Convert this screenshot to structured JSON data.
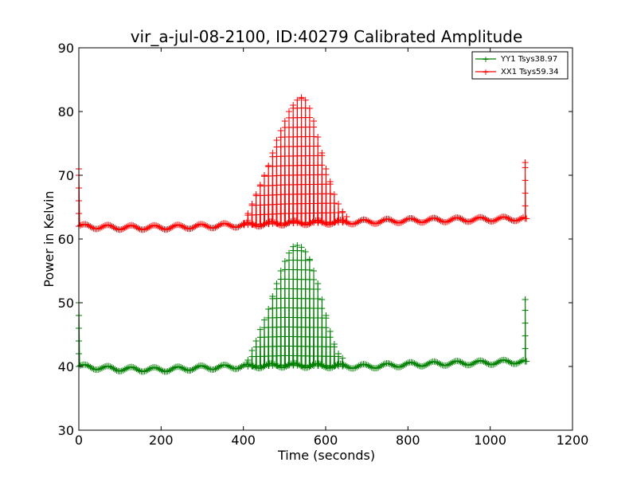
{
  "chart_data": {
    "type": "line",
    "title": "vir_a-jul-08-2100, ID:40279 Calibrated Amplitude",
    "xlabel": "Time (seconds)",
    "ylabel": "Power in Kelvin",
    "xlim": [
      0,
      1200
    ],
    "ylim": [
      30,
      90
    ],
    "xticks": [
      "0",
      "200",
      "400",
      "600",
      "800",
      "1000",
      "1200"
    ],
    "yticks": [
      "30",
      "40",
      "50",
      "60",
      "70",
      "80",
      "90"
    ],
    "grid": false,
    "legend_position": "top-right",
    "marker": "+",
    "series": [
      {
        "name": "YY1 Tsys38.97",
        "color": "#008000",
        "base": [
          [
            0,
            40.0
          ],
          [
            100,
            39.6
          ],
          [
            200,
            39.5
          ],
          [
            300,
            39.8
          ],
          [
            400,
            40.0
          ],
          [
            500,
            40.2
          ],
          [
            600,
            40.1
          ],
          [
            700,
            40.0
          ],
          [
            800,
            40.3
          ],
          [
            900,
            40.5
          ],
          [
            1000,
            40.6
          ],
          [
            1080,
            40.8
          ]
        ],
        "peaks": [
          [
            410,
            41.0
          ],
          [
            420,
            42.5
          ],
          [
            430,
            44.0
          ],
          [
            440,
            45.8
          ],
          [
            450,
            47.3
          ],
          [
            460,
            49.0
          ],
          [
            470,
            51.0
          ],
          [
            480,
            53.0
          ],
          [
            490,
            55.0
          ],
          [
            500,
            56.5
          ],
          [
            510,
            57.8
          ],
          [
            520,
            58.8
          ],
          [
            530,
            59.0
          ],
          [
            540,
            58.7
          ],
          [
            550,
            58.0
          ],
          [
            560,
            56.8
          ],
          [
            570,
            55.0
          ],
          [
            580,
            53.0
          ],
          [
            590,
            50.5
          ],
          [
            600,
            48.0
          ],
          [
            610,
            45.5
          ],
          [
            620,
            43.5
          ],
          [
            630,
            42.0
          ],
          [
            640,
            41.3
          ]
        ],
        "edge_spikes": [
          [
            0,
            50.0
          ],
          [
            1085,
            50.5
          ]
        ]
      },
      {
        "name": "XX1 Tsys59.34",
        "color": "#ff0000",
        "base": [
          [
            0,
            62.0
          ],
          [
            100,
            61.8
          ],
          [
            200,
            61.8
          ],
          [
            300,
            62.0
          ],
          [
            400,
            62.2
          ],
          [
            500,
            62.5
          ],
          [
            600,
            62.6
          ],
          [
            700,
            62.7
          ],
          [
            800,
            62.9
          ],
          [
            900,
            63.0
          ],
          [
            1000,
            63.1
          ],
          [
            1080,
            63.2
          ]
        ],
        "peaks": [
          [
            400,
            63.0
          ],
          [
            410,
            64.0
          ],
          [
            420,
            65.5
          ],
          [
            430,
            67.0
          ],
          [
            440,
            68.5
          ],
          [
            450,
            70.0
          ],
          [
            460,
            71.5
          ],
          [
            470,
            73.5
          ],
          [
            480,
            75.5
          ],
          [
            490,
            77.0
          ],
          [
            500,
            78.5
          ],
          [
            510,
            80.0
          ],
          [
            520,
            81.0
          ],
          [
            530,
            81.8
          ],
          [
            540,
            82.2
          ],
          [
            550,
            81.8
          ],
          [
            560,
            80.5
          ],
          [
            570,
            78.5
          ],
          [
            580,
            76.0
          ],
          [
            590,
            73.5
          ],
          [
            600,
            71.0
          ],
          [
            610,
            69.0
          ],
          [
            620,
            67.0
          ],
          [
            630,
            65.5
          ],
          [
            640,
            64.3
          ],
          [
            650,
            63.5
          ]
        ],
        "edge_spikes": [
          [
            0,
            71.0
          ],
          [
            1085,
            72.0
          ]
        ]
      }
    ]
  }
}
